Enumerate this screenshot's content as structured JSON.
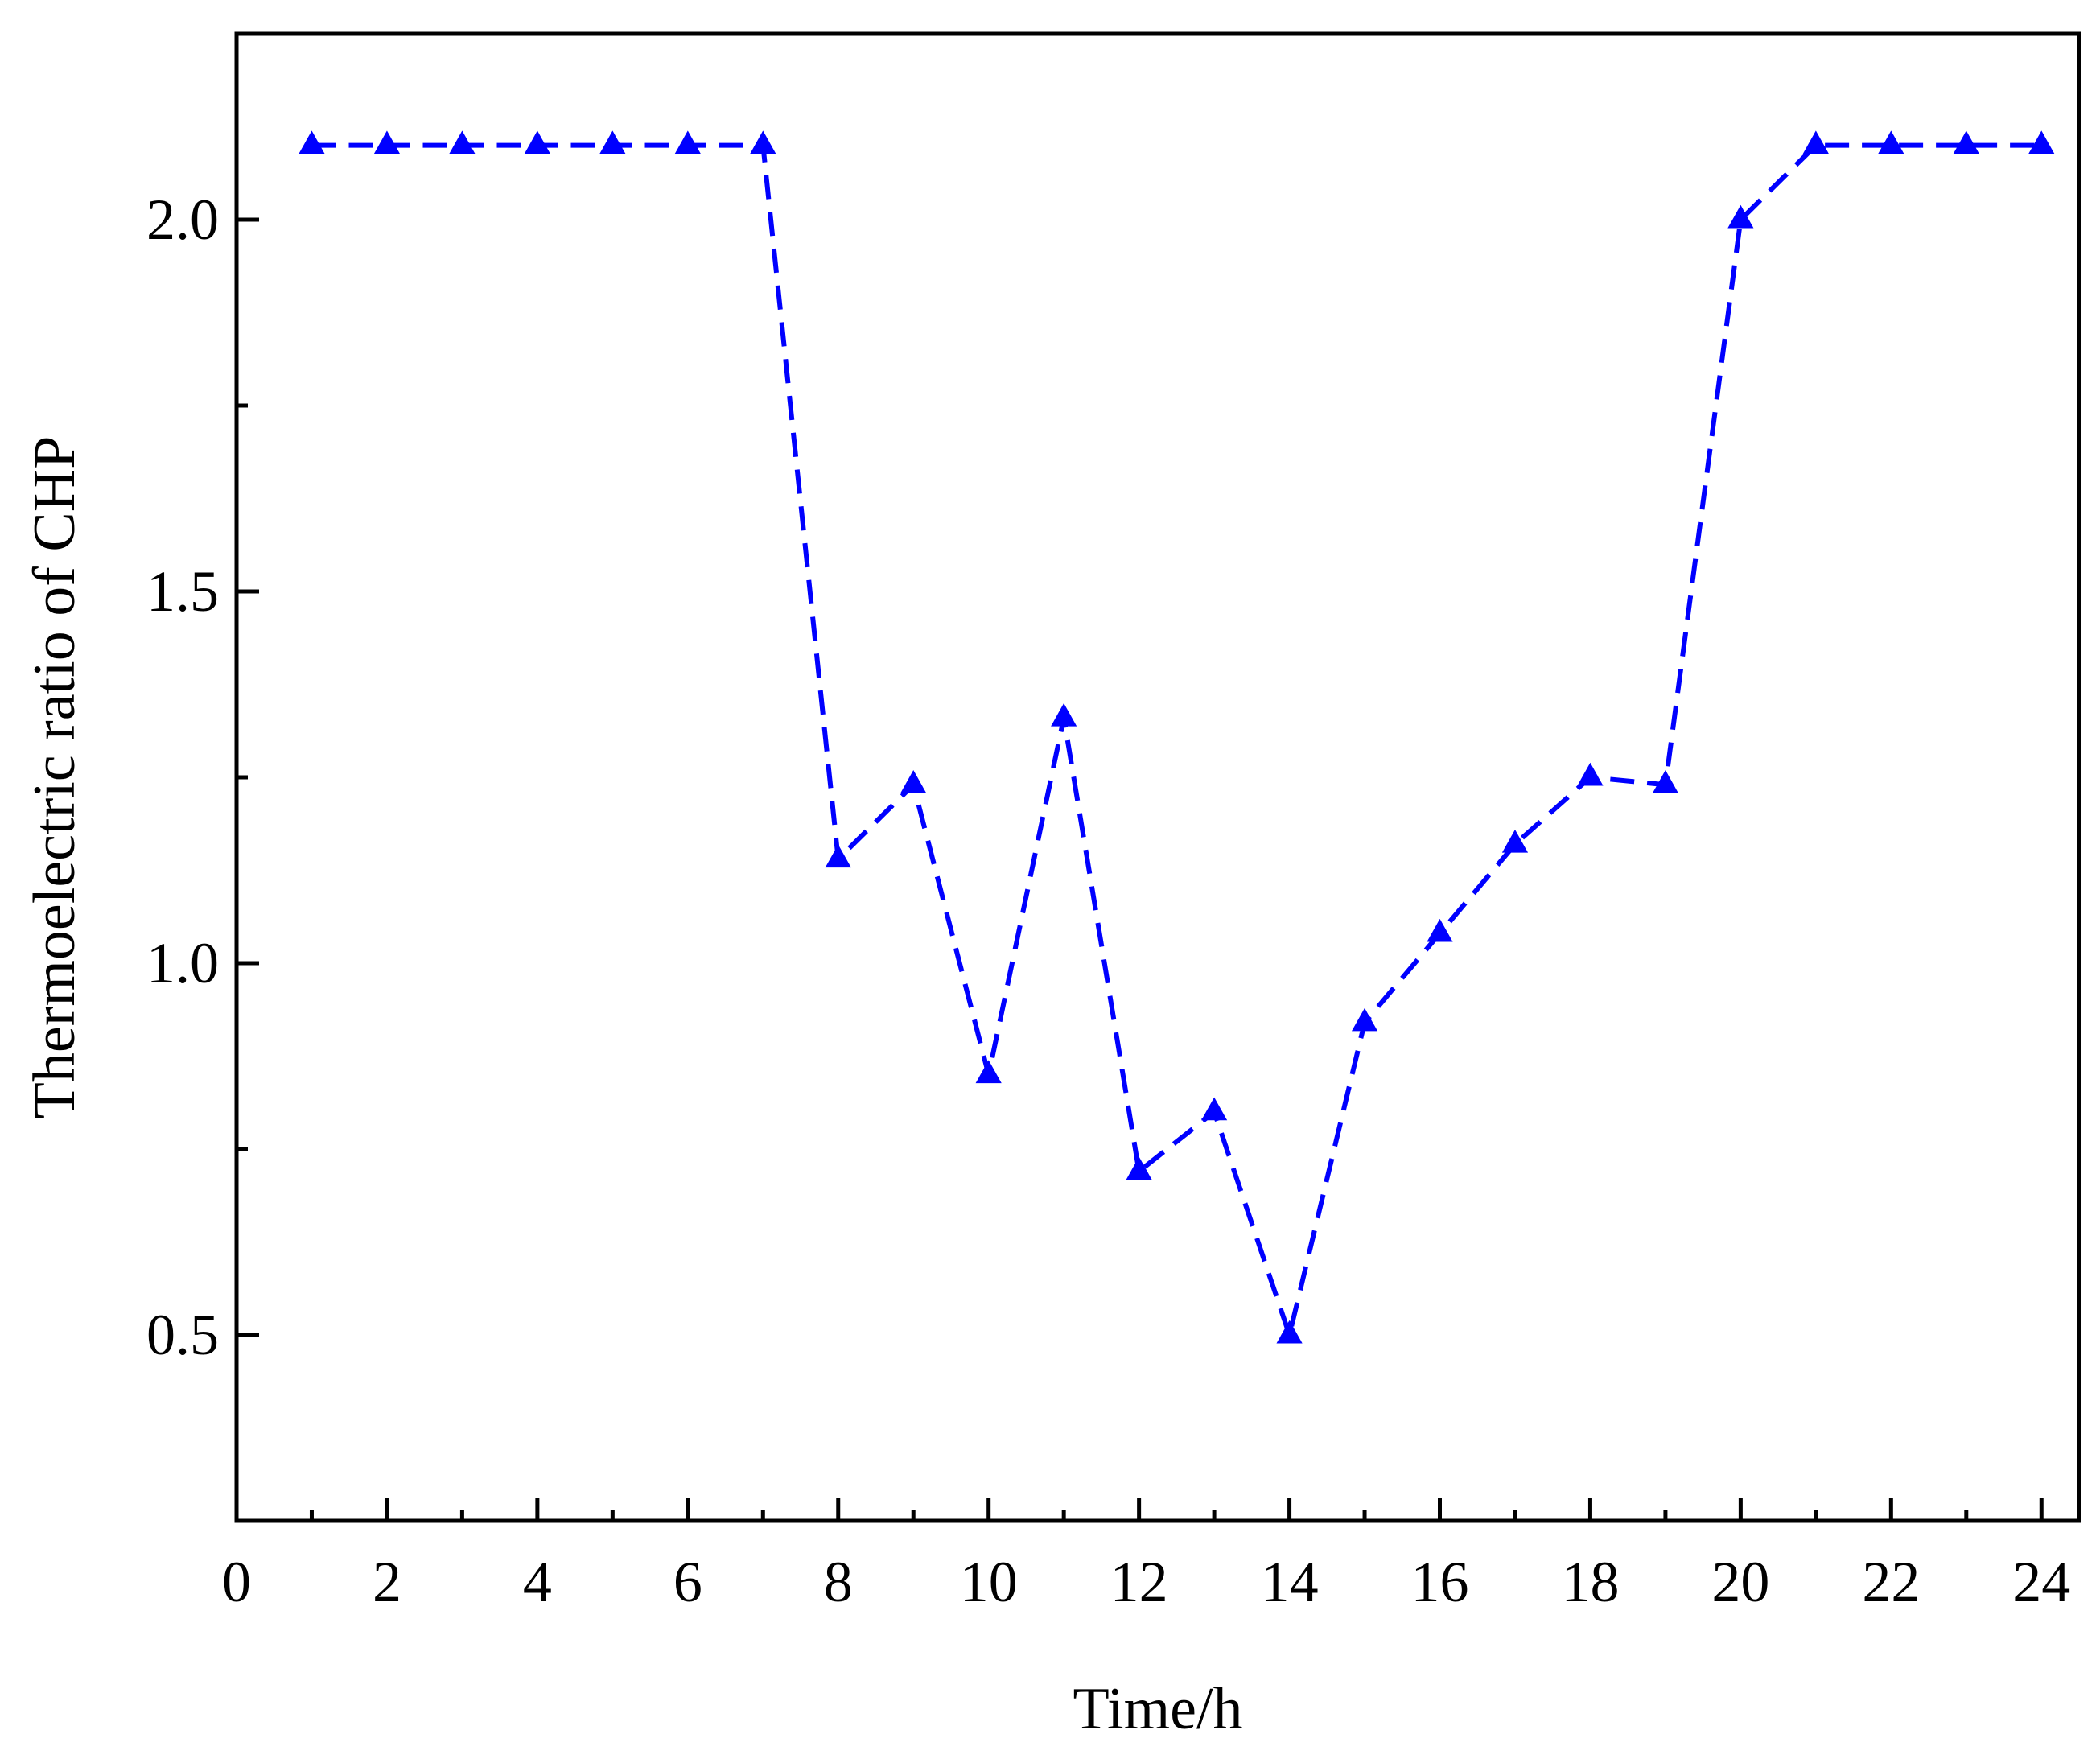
{
  "chart_data": {
    "type": "line",
    "title": "",
    "xlabel": "Time/h",
    "ylabel": "Thermoelectric ratio of CHP",
    "xlim": [
      0,
      24.5
    ],
    "ylim": [
      0.25,
      2.25
    ],
    "x_ticks": [
      0,
      2,
      4,
      6,
      8,
      10,
      12,
      14,
      16,
      18,
      20,
      22,
      24
    ],
    "x_tick_labels": [
      "0",
      "2",
      "4",
      "6",
      "8",
      "10",
      "12",
      "14",
      "16",
      "18",
      "20",
      "22",
      "24"
    ],
    "y_ticks": [
      0.5,
      1.0,
      1.5,
      2.0
    ],
    "y_tick_labels": [
      "0.5",
      "1.0",
      "1.5",
      "2.0"
    ],
    "grid": false,
    "legend": false,
    "series": [
      {
        "color": "#0000ff",
        "marker": "triangle",
        "line_style": "dashed",
        "x": [
          1,
          2,
          3,
          4,
          5,
          6,
          7,
          8,
          9,
          10,
          11,
          12,
          13,
          14,
          15,
          16,
          17,
          18,
          19,
          20,
          21,
          22,
          23,
          24
        ],
        "values": [
          2.1,
          2.1,
          2.1,
          2.1,
          2.1,
          2.1,
          2.1,
          1.14,
          1.24,
          0.85,
          1.33,
          0.72,
          0.8,
          0.5,
          0.92,
          1.04,
          1.16,
          1.25,
          1.24,
          2.0,
          2.1,
          2.1,
          2.1,
          2.1
        ]
      }
    ]
  }
}
